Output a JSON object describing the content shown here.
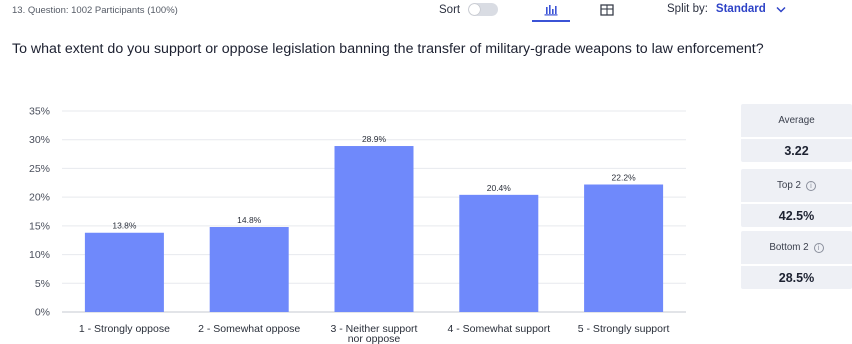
{
  "header": {
    "question_meta": "13. Question: 1002 Participants (100%)",
    "sort_label": "Sort",
    "sort_enabled": false,
    "views": [
      {
        "name": "bar-chart-icon",
        "active": true
      },
      {
        "name": "table-icon",
        "active": false
      }
    ],
    "split_label": "Split by:",
    "split_value": "Standard"
  },
  "question": {
    "text": "To what extent do you support or oppose legislation banning the transfer of military-grade weapons to law enforcement?"
  },
  "stats": [
    {
      "label": "Average",
      "value": "3.22",
      "info": false
    },
    {
      "label": "Top 2",
      "value": "42.5%",
      "info": true
    },
    {
      "label": "Bottom 2",
      "value": "28.5%",
      "info": true
    }
  ],
  "colors": {
    "bar": "#6f89fb",
    "accent": "#2e43c7"
  },
  "chart_data": {
    "type": "bar",
    "categories": [
      "1 - Strongly oppose",
      "2 - Somewhat oppose",
      "3 - Neither support nor oppose",
      "4 - Somewhat support",
      "5 - Strongly support"
    ],
    "values": [
      13.8,
      14.8,
      28.9,
      20.4,
      22.2
    ],
    "data_labels": [
      "13.8%",
      "14.8%",
      "28.9%",
      "20.4%",
      "22.2%"
    ],
    "ylim": [
      0,
      35
    ],
    "yticks": [
      0,
      5,
      10,
      15,
      20,
      25,
      30,
      35
    ],
    "ytick_labels": [
      "0%",
      "5%",
      "10%",
      "15%",
      "20%",
      "25%",
      "30%",
      "35%"
    ],
    "grid": true,
    "title": "",
    "xlabel": "",
    "ylabel": ""
  }
}
